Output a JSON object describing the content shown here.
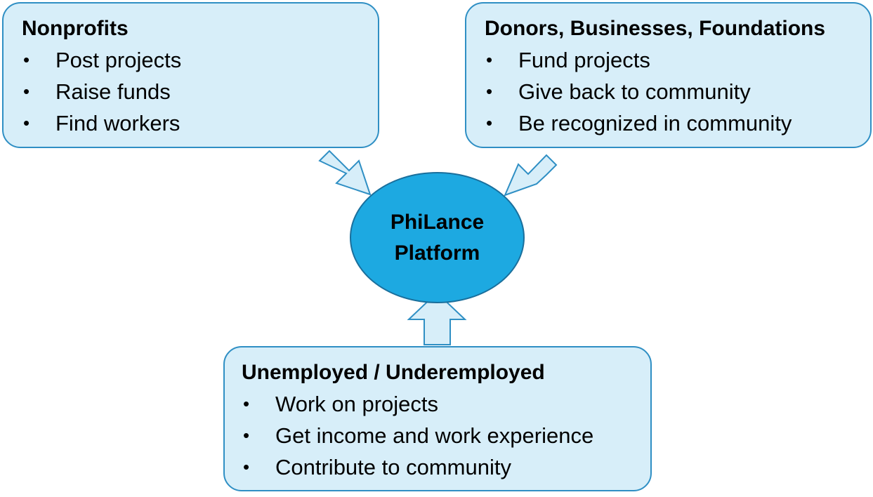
{
  "hub": {
    "line1": "PhiLance",
    "line2": "Platform"
  },
  "boxes": {
    "nonprofits": {
      "title": "Nonprofits",
      "items": [
        "Post projects",
        "Raise funds",
        "Find workers"
      ]
    },
    "donors": {
      "title": "Donors, Businesses, Foundations",
      "items": [
        "Fund projects",
        "Give back to community",
        "Be recognized in community"
      ]
    },
    "unemployed": {
      "title": "Unemployed / Underemployed",
      "items": [
        "Work on projects",
        "Get income and work experience",
        "Contribute to community"
      ]
    }
  },
  "bullet": "•",
  "colors": {
    "box_fill": "#d7eef9",
    "box_border": "#2f8fc4",
    "hub_fill": "#1da9e1",
    "hub_border": "#1a6f9c",
    "arrow_fill": "#d7eef9",
    "arrow_border": "#2f8fc4"
  }
}
